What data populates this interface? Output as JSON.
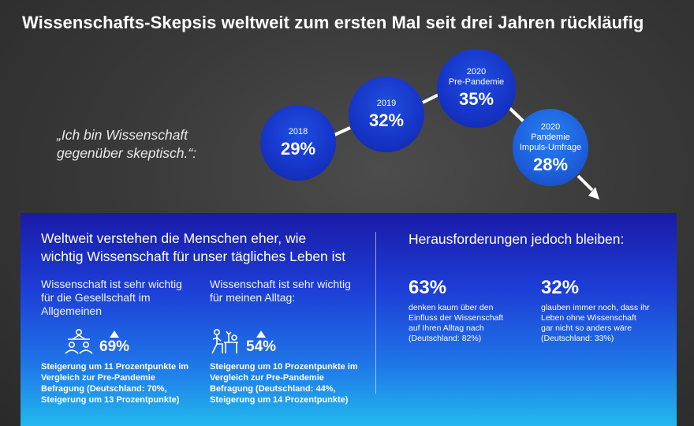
{
  "title": "Wissenschafts-Skepsis weltweit zum ersten Mal seit drei Jahren rückläufig",
  "quote": [
    "„Ich bin Wissenschaft",
    "gegenüber skeptisch.“:"
  ],
  "timeline": [
    {
      "label": "2018",
      "value": "29%"
    },
    {
      "label": "2019",
      "value": "32%"
    },
    {
      "label": "2020\nPre-Pandemie",
      "value": "35%"
    },
    {
      "label": "2020\nPandemie\nImpuls-Umfrage",
      "value": "28%"
    }
  ],
  "panel": {
    "left_heading": [
      "Weltweit verstehen die Menschen eher, wie",
      "wichtig Wissenschaft für unser tägliches Leben ist"
    ],
    "col1": {
      "subtitle": [
        "Wissenschaft ist sehr wichtig",
        "für die Gesellschaft im",
        "Allgemeinen"
      ],
      "value": "69%",
      "icon": "people-at-table-icon",
      "note": [
        "Steigerung um 11 Prozentpunkte im",
        "Vergleich zur Pre-Pandemie",
        "Befragung (Deutschland: 70%,",
        "Steigerung um 13 Prozentpunkte)"
      ]
    },
    "col2": {
      "subtitle": [
        "Wissenschaft ist sehr wichtig",
        "für meinen Alltag:"
      ],
      "value": "54%",
      "icon": "person-at-desk-icon",
      "note": [
        "Steigerung um 10 Prozentpunkte im",
        "Vergleich zur Pre-Pandemie",
        "Befragung (Deutschland: 44%,",
        "Steigerung um 14 Prozentpunkte)"
      ]
    },
    "right_heading": "Herausforderungen jedoch bleiben:",
    "right1": {
      "value": "63%",
      "text": [
        "denken kaum über den",
        "Einfluss der Wissenschaft",
        "auf Ihren Alltag nach",
        "(Deutschland: 82%)"
      ]
    },
    "right2": {
      "value": "32%",
      "text": [
        "glauben immer noch, dass ihr",
        "Leben ohne Wissenschaft",
        "gar nicht so anders wäre",
        "(Deutschland: 33%)"
      ]
    }
  }
}
